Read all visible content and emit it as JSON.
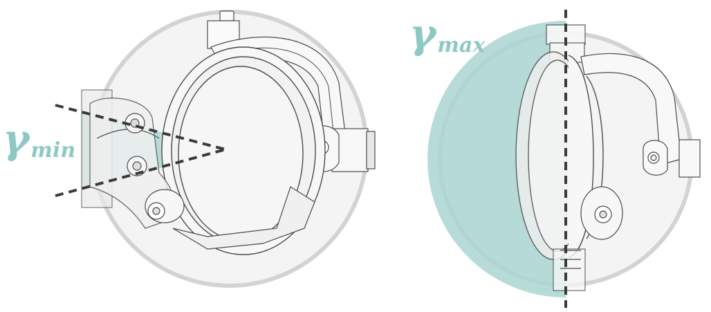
{
  "labels": {
    "gamma_min": {
      "symbol": "γ",
      "subscript": "min"
    },
    "gamma_max": {
      "symbol": "γ",
      "subscript": "max"
    }
  },
  "colors": {
    "accent_teal": "#8ec8c4",
    "shade_teal": "#a9d5d2",
    "sphere_outline": "#d3d3d3",
    "line_art": "#4a4a4a",
    "dashed_line": "#3a3a3a"
  }
}
